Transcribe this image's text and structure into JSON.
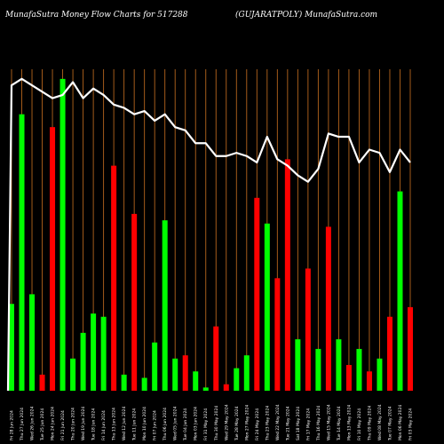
{
  "header": {
    "left_title": "MunafaSutra  Money Flow  Charts for 517288",
    "right_title": "(GUJARATPOLY) MunafaSutra.com"
  },
  "colors": {
    "background": "#000000",
    "up_bar": "#00ff00",
    "down_bar": "#ff0000",
    "grid_line": "#b5651d",
    "price_line": "#ffffff"
  },
  "chart_data": {
    "type": "bar",
    "categories": [
      "1",
      "2",
      "3",
      "4",
      "5",
      "6",
      "7",
      "8",
      "9",
      "10",
      "11",
      "12",
      "13",
      "14",
      "15",
      "16",
      "17",
      "18",
      "19",
      "20",
      "21",
      "22",
      "23",
      "24",
      "25",
      "26",
      "27",
      "28",
      "29",
      "30",
      "31",
      "32",
      "33",
      "34",
      "35",
      "36",
      "37",
      "38",
      "39",
      "40"
    ],
    "series": [
      {
        "direction": [
          "up",
          "up",
          "up",
          "down",
          "down",
          "up",
          "up",
          "up",
          "up",
          "up",
          "down",
          "up",
          "down",
          "up",
          "up",
          "up",
          "up",
          "down",
          "up",
          "up",
          "down",
          "down",
          "up",
          "up",
          "down",
          "up",
          "down",
          "down",
          "up",
          "down",
          "up",
          "down",
          "up",
          "down",
          "up",
          "down",
          "up",
          "down",
          "up",
          "down"
        ],
        "values": [
          27,
          86,
          30,
          5,
          82,
          97,
          10,
          18,
          24,
          23,
          70,
          5,
          55,
          4,
          15,
          53,
          10,
          11,
          6,
          1,
          20,
          2,
          7,
          11,
          60,
          52,
          35,
          72,
          16,
          38,
          13,
          51,
          16,
          8,
          13,
          6,
          10,
          23,
          62,
          26
        ]
      },
      {
        "values": [
          95,
          97,
          95,
          93,
          91,
          92,
          96,
          91,
          94,
          92,
          89,
          88,
          86,
          87,
          84,
          86,
          82,
          81,
          77,
          77,
          73,
          73,
          74,
          73,
          71,
          79,
          72,
          70,
          67,
          65,
          69,
          80,
          79,
          79,
          71,
          75,
          74,
          68,
          75,
          71
        ]
      }
    ],
    "ylim": [
      0,
      100
    ],
    "grid": "vertical",
    "x_tick_labels": [
      "Fri 28 Jun 2024",
      "Thu 27 Jun 2024",
      "Wed 26 Jun 2024",
      "Tue 25 Jun 2024",
      "Mon 24 Jun 2024",
      "Fri 21 Jun 2024",
      "Thu 20 Jun 2024",
      "Wed 19 Jun 2024",
      "Tue 18 Jun 2024",
      "Fri 14 Jun 2024",
      "Thu 13 Jun 2024",
      "Wed 12 Jun 2024",
      "Tue 11 Jun 2024",
      "Mon 10 Jun 2024",
      "Fri 07 Jun 2024",
      "Thu 06 Jun 2024",
      "Wed 05 Jun 2024",
      "Tue 04 Jun 2024",
      "Mon 03 Jun 2024",
      "Fri 31 May 2024",
      "Thu 30 May 2024",
      "Wed 29 May 2024",
      "Tue 28 May 2024",
      "Mon 27 May 2024",
      "Fri 24 May 2024",
      "Thu 23 May 2024",
      "Wed 22 May 2024",
      "Tue 21 May 2024",
      "Sat 18 May 2024",
      "Fri 17 May 2024",
      "Thu 16 May 2024",
      "Wed 15 May 2024",
      "Tue 14 May 2024",
      "Mon 13 May 2024",
      "Fri 10 May 2024",
      "Thu 09 May 2024",
      "Wed 08 May 2024",
      "Tue 07 May 2024",
      "Mon 06 May 2024",
      "Fri 03 May 2024"
    ]
  }
}
